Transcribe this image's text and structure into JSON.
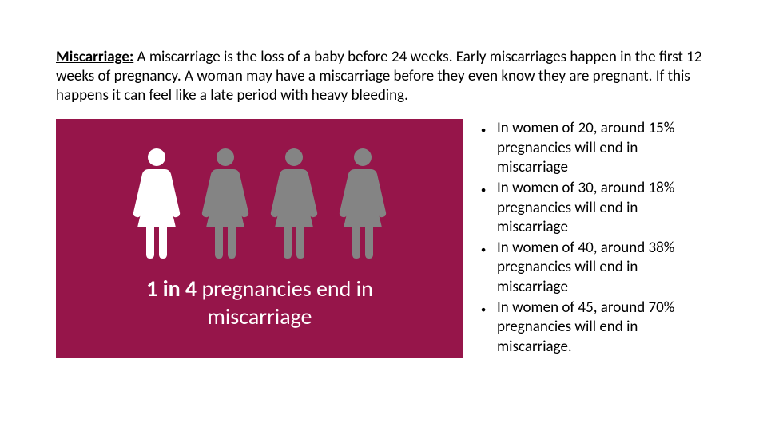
{
  "intro": {
    "term": "Miscarriage:",
    "body": " A miscarriage is the loss of a baby before 24 weeks. Early miscarriages happen in the first 12 weeks of pregnancy. A woman may have a miscarriage before they even know they are pregnant. If this happens it can feel like a late period with heavy bleeding."
  },
  "infographic": {
    "background_color": "#96154a",
    "figure_count": 4,
    "highlight_index": 0,
    "highlight_color": "#ffffff",
    "other_color": "#848484",
    "stat_bold": "1 in 4",
    "stat_rest_line1": " pregnancies end in",
    "stat_line2": "miscarriage",
    "text_color": "#ffffff",
    "stat_fontsize": 28
  },
  "bullets": [
    "In women of 20, around 15% pregnancies will end in miscarriage",
    "In women of 30, around 18% pregnancies will end in miscarriage",
    "In women of 40, around 38% pregnancies will end in miscarriage",
    "In women of 45, around 70% pregnancies will end in miscarriage."
  ]
}
